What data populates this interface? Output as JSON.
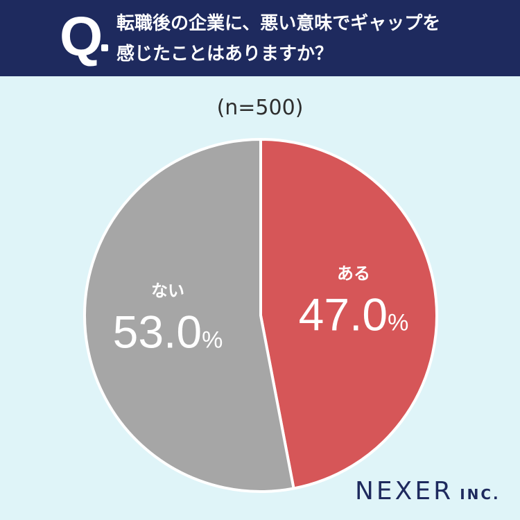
{
  "header": {
    "q_mark": "Q",
    "question_line1": "転職後の企業に、悪い意味でギャップを",
    "question_line2": "感じたことはありますか？"
  },
  "sample": "(n=500)",
  "chart_data": {
    "type": "pie",
    "title": "",
    "slices": [
      {
        "label": "ある",
        "value": 47.0,
        "display": "47.0",
        "color": "#d65658"
      },
      {
        "label": "ない",
        "value": 53.0,
        "display": "53.0",
        "color": "#a6a6a6"
      }
    ],
    "unit": "%",
    "start": "12 o'clock, clockwise",
    "legend": "none"
  },
  "brand": {
    "name": "NEXER",
    "suffix": "INC."
  }
}
